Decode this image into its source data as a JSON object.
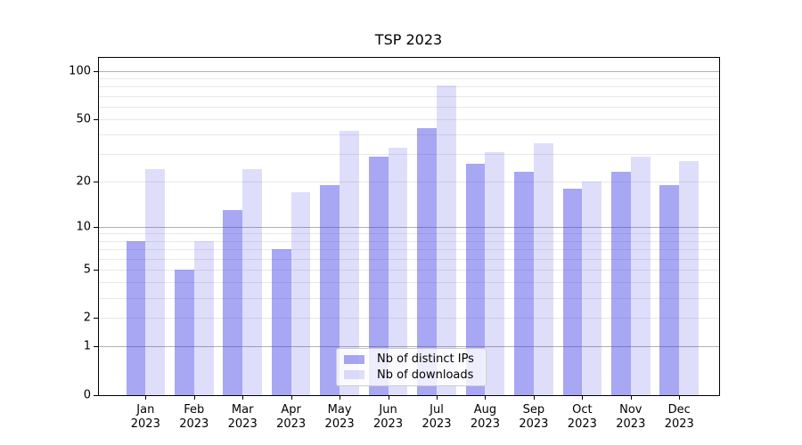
{
  "figure": {
    "title": "TSP 2023"
  },
  "chart_data": {
    "type": "bar",
    "title": "TSP 2023",
    "categories": [
      "Jan 2023",
      "Feb 2023",
      "Mar 2023",
      "Apr 2023",
      "May 2023",
      "Jun 2023",
      "Jul 2023",
      "Aug 2023",
      "Sep 2023",
      "Oct 2023",
      "Nov 2023",
      "Dec 2023"
    ],
    "series": [
      {
        "name": "Nb of distinct IPs",
        "color": "rgba(60,60,230,0.45)",
        "values": [
          8,
          5,
          13,
          7,
          19,
          29,
          44,
          26,
          23,
          18,
          23,
          19
        ]
      },
      {
        "name": "Nb of downloads",
        "color": "rgba(60,60,230,0.17)",
        "values": [
          24,
          8,
          24,
          17,
          42,
          33,
          81,
          31,
          35,
          20,
          29,
          27
        ]
      }
    ],
    "xlabel": "",
    "ylabel": "",
    "yscale": "log1p",
    "yticks": [
      100,
      50,
      20,
      10,
      5,
      2,
      1,
      0
    ],
    "ytick_labels": [
      "100",
      "50",
      "20",
      "10",
      "5",
      "2",
      "1",
      "0"
    ],
    "ylim": [
      0,
      121
    ],
    "grid": "horizontal, minor and major",
    "legend_position": "lower center"
  },
  "legend": {
    "items": [
      "Nb of distinct IPs",
      "Nb of downloads"
    ]
  },
  "colors": {
    "bar_distinct_ips": "rgba(60,60,230,0.45)",
    "bar_downloads": "rgba(60,60,230,0.17)",
    "grid_minor": "#e8e8e8",
    "grid_major": "#b0b0b0",
    "axis": "#000000",
    "legend_border": "#cccccc"
  }
}
